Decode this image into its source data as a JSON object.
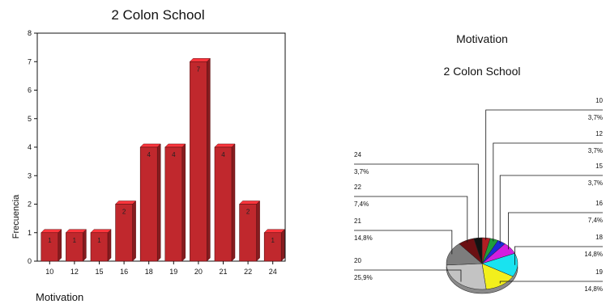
{
  "chart_data": [
    {
      "type": "bar",
      "title": "2 Colon School",
      "xlabel": "Motivation",
      "ylabel": "Frecuencia",
      "ylim": [
        0,
        8
      ],
      "yticks": [
        0,
        1,
        2,
        3,
        4,
        5,
        6,
        7,
        8
      ],
      "categories": [
        "10",
        "12",
        "15",
        "16",
        "18",
        "19",
        "20",
        "21",
        "22",
        "24"
      ],
      "values": [
        1,
        1,
        1,
        2,
        4,
        4,
        7,
        4,
        2,
        1
      ],
      "data_labels": [
        "1",
        "1",
        "1",
        "2",
        "4",
        "4",
        "7",
        "4",
        "2",
        "1"
      ],
      "bar_color": "#c0282d",
      "grid": false
    },
    {
      "type": "pie",
      "title": "Motivation",
      "subtitle": "2 Colon School",
      "slices": [
        {
          "label": "10",
          "percent_label": "3,7%",
          "value": 3.7,
          "color": "#b01e23"
        },
        {
          "label": "12",
          "percent_label": "3,7%",
          "value": 3.7,
          "color": "#1f9e3a"
        },
        {
          "label": "15",
          "percent_label": "3,7%",
          "value": 3.7,
          "color": "#1c2bd8"
        },
        {
          "label": "16",
          "percent_label": "7,4%",
          "value": 7.4,
          "color": "#d21fe0"
        },
        {
          "label": "18",
          "percent_label": "14,8%",
          "value": 14.8,
          "color": "#19e3f0"
        },
        {
          "label": "19",
          "percent_label": "14,8%",
          "value": 14.8,
          "color": "#f2ef1c"
        },
        {
          "label": "20",
          "percent_label": "25,9%",
          "value": 25.9,
          "color": "#c3c3c3"
        },
        {
          "label": "21",
          "percent_label": "14,8%",
          "value": 14.8,
          "color": "#7d7d7d"
        },
        {
          "label": "22",
          "percent_label": "7,4%",
          "value": 7.4,
          "color": "#6b0f12"
        },
        {
          "label": "24",
          "percent_label": "3,7%",
          "value": 3.7,
          "color": "#121212"
        }
      ]
    }
  ]
}
